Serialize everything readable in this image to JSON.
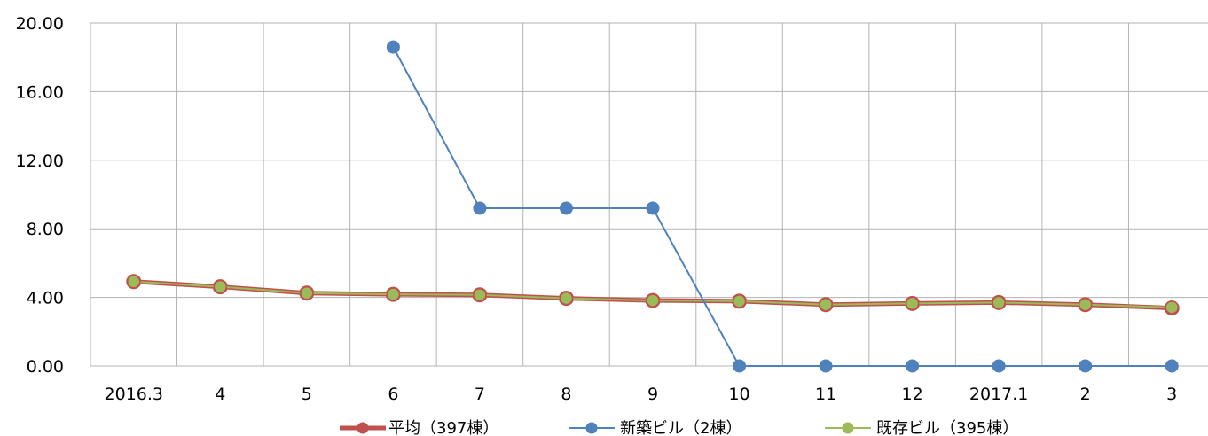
{
  "chart_data": {
    "type": "line",
    "categories": [
      "2016.3",
      "4",
      "5",
      "6",
      "7",
      "8",
      "9",
      "10",
      "11",
      "12",
      "2017.1",
      "2",
      "3"
    ],
    "yticks": [
      "0.00",
      "4.00",
      "8.00",
      "12.00",
      "16.00",
      "20.00"
    ],
    "ylim": [
      0,
      20
    ],
    "grid": true,
    "legend_position": "bottom",
    "series": [
      {
        "name": "平均（397棟）",
        "color": "#c0504d",
        "values": [
          4.92,
          4.62,
          4.25,
          4.18,
          4.15,
          3.95,
          3.82,
          3.78,
          3.58,
          3.65,
          3.7,
          3.58,
          3.38
        ]
      },
      {
        "name": "新築ビル（2棟）",
        "color": "#4f81bd",
        "values": [
          null,
          null,
          null,
          18.6,
          9.2,
          9.2,
          9.2,
          0,
          0,
          0,
          0,
          0,
          0
        ]
      },
      {
        "name": "既存ビル（395棟）",
        "color": "#9bbb59",
        "values": [
          4.92,
          4.62,
          4.25,
          4.18,
          4.15,
          3.95,
          3.82,
          3.78,
          3.58,
          3.65,
          3.7,
          3.58,
          3.42
        ]
      }
    ]
  }
}
